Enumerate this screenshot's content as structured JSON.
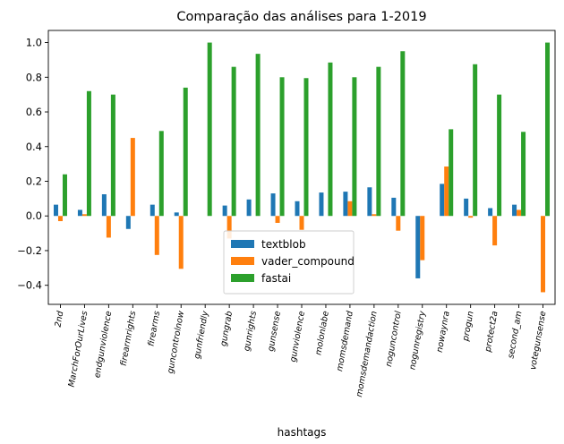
{
  "chart_data": {
    "type": "bar",
    "title": "Comparação das análises para 1-2019",
    "xlabel": "hashtags",
    "ylabel": "",
    "ylim": [
      -0.51,
      1.07
    ],
    "yticks": [
      -0.4,
      -0.2,
      0.0,
      0.2,
      0.4,
      0.6,
      0.8,
      1.0
    ],
    "ytick_labels": [
      "−0.4",
      "−0.2",
      "0.0",
      "0.2",
      "0.4",
      "0.6",
      "0.8",
      "1.0"
    ],
    "grid": false,
    "legend_position": "lower-center",
    "categories": [
      "2nd",
      "MarchForOurLives",
      "endgunviolence",
      "firearmrights",
      "firearms",
      "guncontrolnow",
      "gunfriendly",
      "gungrab",
      "gunrights",
      "gunsense",
      "gunviolence",
      "molonlabe",
      "momsdemand",
      "momsdemandaction",
      "noguncontrol",
      "nogunregistry",
      "nowaynra",
      "progun",
      "protect2a",
      "second_am",
      "votegunsense"
    ],
    "series": [
      {
        "name": "textblob",
        "color": "#1f77b4",
        "values": [
          0.065,
          0.035,
          0.125,
          -0.075,
          0.065,
          0.02,
          0.0,
          0.06,
          0.095,
          0.13,
          0.085,
          0.135,
          0.14,
          0.165,
          0.105,
          -0.36,
          0.185,
          0.1,
          0.045,
          0.065,
          0.0
        ]
      },
      {
        "name": "vader_compound",
        "color": "#ff7f0e",
        "values": [
          -0.03,
          0.01,
          -0.125,
          0.45,
          -0.225,
          -0.305,
          0.0,
          -0.13,
          0.0,
          -0.04,
          -0.08,
          0.0,
          0.085,
          0.01,
          -0.085,
          -0.255,
          0.285,
          -0.01,
          -0.17,
          0.035,
          -0.44
        ]
      },
      {
        "name": "fastai",
        "color": "#2ca02c",
        "values": [
          0.24,
          0.72,
          0.7,
          0.0,
          0.49,
          0.74,
          1.0,
          0.86,
          0.935,
          0.8,
          0.795,
          0.885,
          0.8,
          0.86,
          0.95,
          0.0,
          0.5,
          0.875,
          0.7,
          0.485,
          1.0
        ]
      }
    ]
  }
}
